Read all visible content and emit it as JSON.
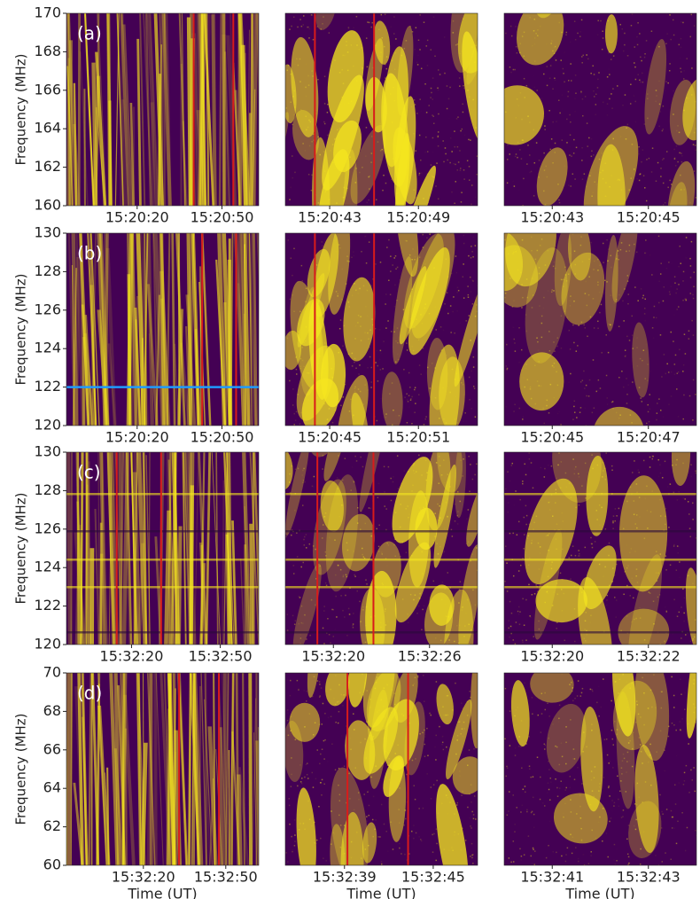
{
  "chart_data": [
    {
      "type": "spectrogram",
      "panel_label": "(a)",
      "ylabel": "Frequency (MHz)",
      "ylim": [
        160,
        170
      ],
      "yticks": [
        160,
        162,
        164,
        166,
        168,
        170
      ],
      "xlim": [
        "15:19:55",
        "15:21:03"
      ],
      "xticks": [
        "15:20:20",
        "15:20:50"
      ],
      "markers": [
        "15:20:40",
        "15:20:54"
      ],
      "background": "#440154",
      "foreground": "#f5e61f"
    },
    {
      "type": "spectrogram",
      "xlim": [
        "15:20:40",
        "15:20:53"
      ],
      "xticks": [
        "15:20:43",
        "15:20:49"
      ],
      "markers": [
        "15:20:42",
        "15:20:46"
      ],
      "background": "#440154",
      "foreground": "#f5e61f"
    },
    {
      "type": "spectrogram",
      "xlim": [
        "15:20:42",
        "15:20:46"
      ],
      "xticks": [
        "15:20:43",
        "15:20:45"
      ],
      "background": "#440154",
      "foreground": "#f5e61f"
    },
    {
      "type": "spectrogram",
      "panel_label": "(b)",
      "ylabel": "Frequency (MHz)",
      "ylim": [
        120,
        130
      ],
      "yticks": [
        120,
        122,
        124,
        126,
        128,
        130
      ],
      "xlim": [
        "15:19:55",
        "15:21:03"
      ],
      "xticks": [
        "15:20:20",
        "15:20:50"
      ],
      "markers": [
        "15:20:43",
        "15:20:55"
      ],
      "hline": {
        "value": 122,
        "color": "#1e9bff"
      },
      "background": "#440154",
      "foreground": "#f5e61f"
    },
    {
      "type": "spectrogram",
      "xlim": [
        "15:20:42",
        "15:20:55"
      ],
      "xticks": [
        "15:20:45",
        "15:20:51"
      ],
      "markers": [
        "15:20:44",
        "15:20:48"
      ],
      "background": "#440154",
      "foreground": "#f5e61f"
    },
    {
      "type": "spectrogram",
      "xlim": [
        "15:20:44",
        "15:20:48"
      ],
      "xticks": [
        "15:20:45",
        "15:20:47"
      ],
      "background": "#440154",
      "foreground": "#f5e61f"
    },
    {
      "type": "spectrogram",
      "panel_label": "(c)",
      "ylabel": "Frequency (MHz)",
      "ylim": [
        120,
        130
      ],
      "yticks": [
        120,
        122,
        124,
        126,
        128,
        130
      ],
      "xlim": [
        "15:31:58",
        "15:33:03"
      ],
      "xticks": [
        "15:32:20",
        "15:32:50"
      ],
      "markers": [
        "15:32:15",
        "15:32:30"
      ],
      "background": "#440154",
      "foreground": "#f5e61f"
    },
    {
      "type": "spectrogram",
      "xlim": [
        "15:32:17",
        "15:32:29"
      ],
      "xticks": [
        "15:32:20",
        "15:32:26"
      ],
      "markers": [
        "15:32:19",
        "15:32:22.5"
      ],
      "background": "#440154",
      "foreground": "#f5e61f"
    },
    {
      "type": "spectrogram",
      "xlim": [
        "15:32:19",
        "15:32:23"
      ],
      "xticks": [
        "15:32:20",
        "15:32:22"
      ],
      "background": "#440154",
      "foreground": "#f5e61f"
    },
    {
      "type": "spectrogram",
      "panel_label": "(d)",
      "ylabel": "Frequency (MHz)",
      "ylim": [
        60,
        70
      ],
      "yticks": [
        60,
        62,
        64,
        66,
        68,
        70
      ],
      "xlim": [
        "15:31:52",
        "15:33:02"
      ],
      "xticks": [
        "15:32:20",
        "15:32:50"
      ],
      "markers": [
        "15:32:33",
        "15:32:47.5"
      ],
      "xlabel": "Time (UT)",
      "background": "#440154",
      "foreground": "#f5e61f"
    },
    {
      "type": "spectrogram",
      "xlim": [
        "15:32:35",
        "15:32:48"
      ],
      "xticks": [
        "15:32:39",
        "15:32:45"
      ],
      "markers": [
        "15:32:39.2",
        "15:32:43.3"
      ],
      "xlabel": "Time (UT)",
      "background": "#440154",
      "foreground": "#f5e61f"
    },
    {
      "type": "spectrogram",
      "xlim": [
        "15:32:40",
        "15:32:44"
      ],
      "xticks": [
        "15:32:41",
        "15:32:43"
      ],
      "xlabel": "Time (UT)",
      "background": "#440154",
      "foreground": "#f5e61f"
    }
  ]
}
